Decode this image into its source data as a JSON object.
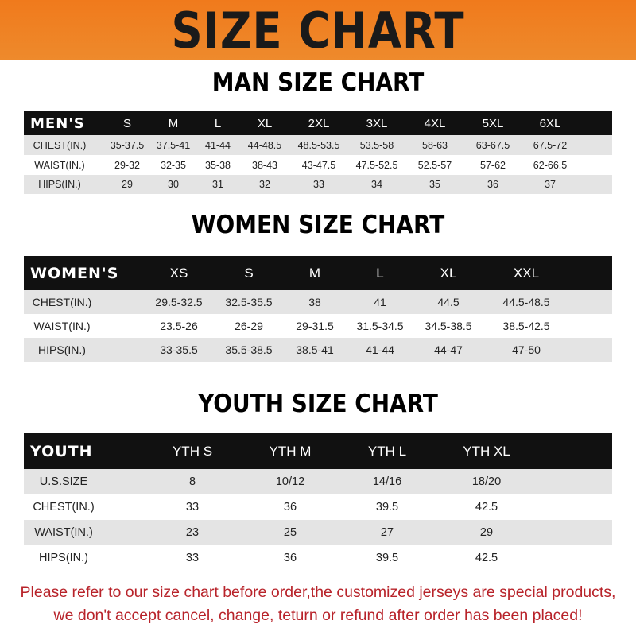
{
  "banner": {
    "title": "SIZE CHART",
    "color": "#f07a1c"
  },
  "men": {
    "title": "MAN SIZE CHART",
    "header": [
      "MEN'S",
      "S",
      "M",
      "L",
      "XL",
      "2XL",
      "3XL",
      "4XL",
      "5XL",
      "6XL"
    ],
    "rows": [
      [
        "CHEST(IN.)",
        "35-37.5",
        "37.5-41",
        "41-44",
        "44-48.5",
        "48.5-53.5",
        "53.5-58",
        "58-63",
        "63-67.5",
        "67.5-72"
      ],
      [
        "WAIST(IN.)",
        "29-32",
        "32-35",
        "35-38",
        "38-43",
        "43-47.5",
        "47.5-52.5",
        "52.5-57",
        "57-62",
        "62-66.5"
      ],
      [
        "HIPS(IN.)",
        "29",
        "30",
        "31",
        "32",
        "33",
        "34",
        "35",
        "36",
        "37"
      ]
    ]
  },
  "women": {
    "title": "WOMEN SIZE CHART",
    "header": [
      "WOMEN'S",
      "XS",
      "S",
      "M",
      "L",
      "XL",
      "XXL"
    ],
    "rows": [
      [
        "CHEST(IN.)",
        "29.5-32.5",
        "32.5-35.5",
        "38",
        "41",
        "44.5",
        "44.5-48.5"
      ],
      [
        "WAIST(IN.)",
        "23.5-26",
        "26-29",
        "29-31.5",
        "31.5-34.5",
        "34.5-38.5",
        "38.5-42.5"
      ],
      [
        "HIPS(IN.)",
        "33-35.5",
        "35.5-38.5",
        "38.5-41",
        "41-44",
        "44-47",
        "47-50"
      ]
    ]
  },
  "youth": {
    "title": "YOUTH SIZE CHART",
    "header": [
      "YOUTH",
      "YTH S",
      "YTH M",
      "YTH L",
      "YTH XL"
    ],
    "rows": [
      [
        "U.S.SIZE",
        "8",
        "10/12",
        "14/16",
        "18/20"
      ],
      [
        "CHEST(IN.)",
        "33",
        "36",
        "39.5",
        "42.5"
      ],
      [
        "WAIST(IN.)",
        "23",
        "25",
        "27",
        "29"
      ],
      [
        "HIPS(IN.)",
        "33",
        "36",
        "39.5",
        "42.5"
      ]
    ]
  },
  "footer": {
    "line1": "Please refer to our size chart before order,the customized jerseys are special products,",
    "line2": "we don't accept cancel, change, teturn or refund after order has been placed!",
    "color": "#b8232a"
  }
}
